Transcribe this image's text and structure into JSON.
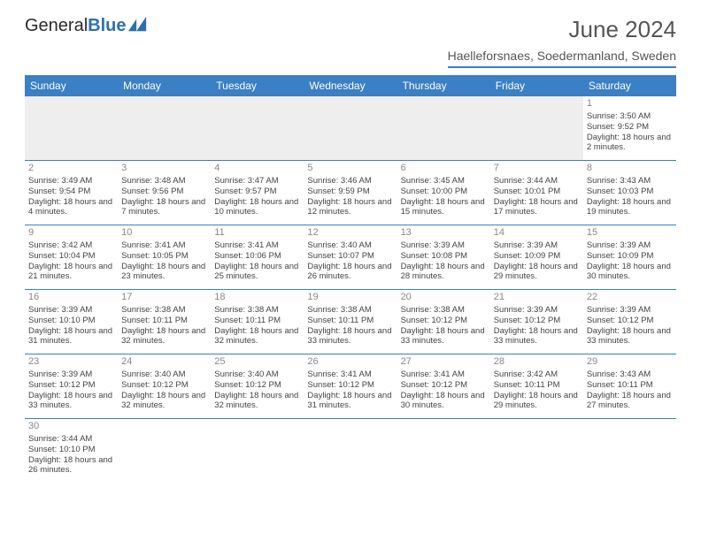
{
  "logo": {
    "text_a": "General",
    "text_b": "Blue",
    "mark_color": "#2f6fb0"
  },
  "title": "June 2024",
  "subtitle": "Haelleforsnaes, Soedermanland, Sweden",
  "colors": {
    "header_bg": "#3b7fc4",
    "header_fg": "#ffffff",
    "cell_border": "#3b7fc4"
  },
  "day_headers": [
    "Sunday",
    "Monday",
    "Tuesday",
    "Wednesday",
    "Thursday",
    "Friday",
    "Saturday"
  ],
  "weeks": [
    [
      null,
      null,
      null,
      null,
      null,
      null,
      {
        "n": "1",
        "sr": "Sunrise: 3:50 AM",
        "ss": "Sunset: 9:52 PM",
        "dl": "Daylight: 18 hours and 2 minutes."
      }
    ],
    [
      {
        "n": "2",
        "sr": "Sunrise: 3:49 AM",
        "ss": "Sunset: 9:54 PM",
        "dl": "Daylight: 18 hours and 4 minutes."
      },
      {
        "n": "3",
        "sr": "Sunrise: 3:48 AM",
        "ss": "Sunset: 9:56 PM",
        "dl": "Daylight: 18 hours and 7 minutes."
      },
      {
        "n": "4",
        "sr": "Sunrise: 3:47 AM",
        "ss": "Sunset: 9:57 PM",
        "dl": "Daylight: 18 hours and 10 minutes."
      },
      {
        "n": "5",
        "sr": "Sunrise: 3:46 AM",
        "ss": "Sunset: 9:59 PM",
        "dl": "Daylight: 18 hours and 12 minutes."
      },
      {
        "n": "6",
        "sr": "Sunrise: 3:45 AM",
        "ss": "Sunset: 10:00 PM",
        "dl": "Daylight: 18 hours and 15 minutes."
      },
      {
        "n": "7",
        "sr": "Sunrise: 3:44 AM",
        "ss": "Sunset: 10:01 PM",
        "dl": "Daylight: 18 hours and 17 minutes."
      },
      {
        "n": "8",
        "sr": "Sunrise: 3:43 AM",
        "ss": "Sunset: 10:03 PM",
        "dl": "Daylight: 18 hours and 19 minutes."
      }
    ],
    [
      {
        "n": "9",
        "sr": "Sunrise: 3:42 AM",
        "ss": "Sunset: 10:04 PM",
        "dl": "Daylight: 18 hours and 21 minutes."
      },
      {
        "n": "10",
        "sr": "Sunrise: 3:41 AM",
        "ss": "Sunset: 10:05 PM",
        "dl": "Daylight: 18 hours and 23 minutes."
      },
      {
        "n": "11",
        "sr": "Sunrise: 3:41 AM",
        "ss": "Sunset: 10:06 PM",
        "dl": "Daylight: 18 hours and 25 minutes."
      },
      {
        "n": "12",
        "sr": "Sunrise: 3:40 AM",
        "ss": "Sunset: 10:07 PM",
        "dl": "Daylight: 18 hours and 26 minutes."
      },
      {
        "n": "13",
        "sr": "Sunrise: 3:39 AM",
        "ss": "Sunset: 10:08 PM",
        "dl": "Daylight: 18 hours and 28 minutes."
      },
      {
        "n": "14",
        "sr": "Sunrise: 3:39 AM",
        "ss": "Sunset: 10:09 PM",
        "dl": "Daylight: 18 hours and 29 minutes."
      },
      {
        "n": "15",
        "sr": "Sunrise: 3:39 AM",
        "ss": "Sunset: 10:09 PM",
        "dl": "Daylight: 18 hours and 30 minutes."
      }
    ],
    [
      {
        "n": "16",
        "sr": "Sunrise: 3:39 AM",
        "ss": "Sunset: 10:10 PM",
        "dl": "Daylight: 18 hours and 31 minutes."
      },
      {
        "n": "17",
        "sr": "Sunrise: 3:38 AM",
        "ss": "Sunset: 10:11 PM",
        "dl": "Daylight: 18 hours and 32 minutes."
      },
      {
        "n": "18",
        "sr": "Sunrise: 3:38 AM",
        "ss": "Sunset: 10:11 PM",
        "dl": "Daylight: 18 hours and 32 minutes."
      },
      {
        "n": "19",
        "sr": "Sunrise: 3:38 AM",
        "ss": "Sunset: 10:11 PM",
        "dl": "Daylight: 18 hours and 33 minutes."
      },
      {
        "n": "20",
        "sr": "Sunrise: 3:38 AM",
        "ss": "Sunset: 10:12 PM",
        "dl": "Daylight: 18 hours and 33 minutes."
      },
      {
        "n": "21",
        "sr": "Sunrise: 3:39 AM",
        "ss": "Sunset: 10:12 PM",
        "dl": "Daylight: 18 hours and 33 minutes."
      },
      {
        "n": "22",
        "sr": "Sunrise: 3:39 AM",
        "ss": "Sunset: 10:12 PM",
        "dl": "Daylight: 18 hours and 33 minutes."
      }
    ],
    [
      {
        "n": "23",
        "sr": "Sunrise: 3:39 AM",
        "ss": "Sunset: 10:12 PM",
        "dl": "Daylight: 18 hours and 33 minutes."
      },
      {
        "n": "24",
        "sr": "Sunrise: 3:40 AM",
        "ss": "Sunset: 10:12 PM",
        "dl": "Daylight: 18 hours and 32 minutes."
      },
      {
        "n": "25",
        "sr": "Sunrise: 3:40 AM",
        "ss": "Sunset: 10:12 PM",
        "dl": "Daylight: 18 hours and 32 minutes."
      },
      {
        "n": "26",
        "sr": "Sunrise: 3:41 AM",
        "ss": "Sunset: 10:12 PM",
        "dl": "Daylight: 18 hours and 31 minutes."
      },
      {
        "n": "27",
        "sr": "Sunrise: 3:41 AM",
        "ss": "Sunset: 10:12 PM",
        "dl": "Daylight: 18 hours and 30 minutes."
      },
      {
        "n": "28",
        "sr": "Sunrise: 3:42 AM",
        "ss": "Sunset: 10:11 PM",
        "dl": "Daylight: 18 hours and 29 minutes."
      },
      {
        "n": "29",
        "sr": "Sunrise: 3:43 AM",
        "ss": "Sunset: 10:11 PM",
        "dl": "Daylight: 18 hours and 27 minutes."
      }
    ],
    [
      {
        "n": "30",
        "sr": "Sunrise: 3:44 AM",
        "ss": "Sunset: 10:10 PM",
        "dl": "Daylight: 18 hours and 26 minutes."
      },
      null,
      null,
      null,
      null,
      null,
      null
    ]
  ]
}
